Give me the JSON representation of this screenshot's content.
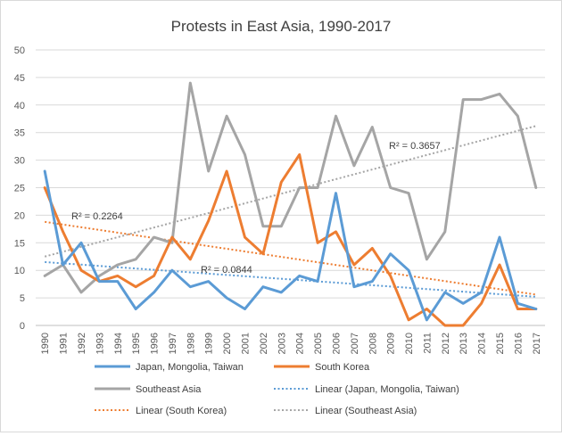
{
  "chart_data": {
    "type": "line",
    "title": "Protests in East Asia, 1990-2017",
    "xlabel": "",
    "ylabel": "",
    "ylim": [
      0,
      50
    ],
    "yticks": [
      0,
      5,
      10,
      15,
      20,
      25,
      30,
      35,
      40,
      45,
      50
    ],
    "grid": true,
    "legend_position": "bottom",
    "categories": [
      "1990",
      "1991",
      "1992",
      "1993",
      "1994",
      "1995",
      "1996",
      "1997",
      "1998",
      "1999",
      "2000",
      "2001",
      "2002",
      "2003",
      "2004",
      "2005",
      "2006",
      "2007",
      "2008",
      "2009",
      "2010",
      "2011",
      "2012",
      "2013",
      "2014",
      "2015",
      "2016",
      "2017"
    ],
    "series": [
      {
        "name": "Japan, Mongolia, Taiwan",
        "color": "#5b9bd5",
        "values": [
          28,
          11,
          15,
          8,
          8,
          3,
          6,
          10,
          7,
          8,
          5,
          3,
          7,
          6,
          9,
          8,
          24,
          7,
          8,
          13,
          10,
          1,
          6,
          4,
          6,
          16,
          4,
          3
        ]
      },
      {
        "name": "South Korea",
        "color": "#ed7d31",
        "values": [
          25,
          17,
          10,
          8,
          9,
          7,
          9,
          16,
          12,
          19,
          28,
          16,
          13,
          26,
          31,
          15,
          17,
          11,
          14,
          9,
          1,
          3,
          0,
          0,
          4,
          11,
          3,
          3
        ]
      },
      {
        "name": "Southeast Asia",
        "color": "#a5a5a5",
        "values": [
          9,
          11,
          6,
          9,
          11,
          12,
          16,
          15,
          44,
          28,
          38,
          31,
          18,
          18,
          25,
          25,
          38,
          29,
          36,
          25,
          24,
          12,
          17,
          41,
          41,
          42,
          38,
          25
        ]
      }
    ],
    "trendlines": [
      {
        "name": "Linear (Japan, Mongolia, Taiwan)",
        "color": "#5b9bd5",
        "start": 11.5,
        "end": 5.2,
        "r2_label": "R² = 0.0844"
      },
      {
        "name": "Linear (South Korea)",
        "color": "#ed7d31",
        "start": 18.8,
        "end": 5.6,
        "r2_label": "R² = 0.2264"
      },
      {
        "name": "Linear (Southeast Asia)",
        "color": "#a5a5a5",
        "start": 12.5,
        "end": 36.2,
        "r2_label": "R² = 0.3657"
      }
    ]
  }
}
